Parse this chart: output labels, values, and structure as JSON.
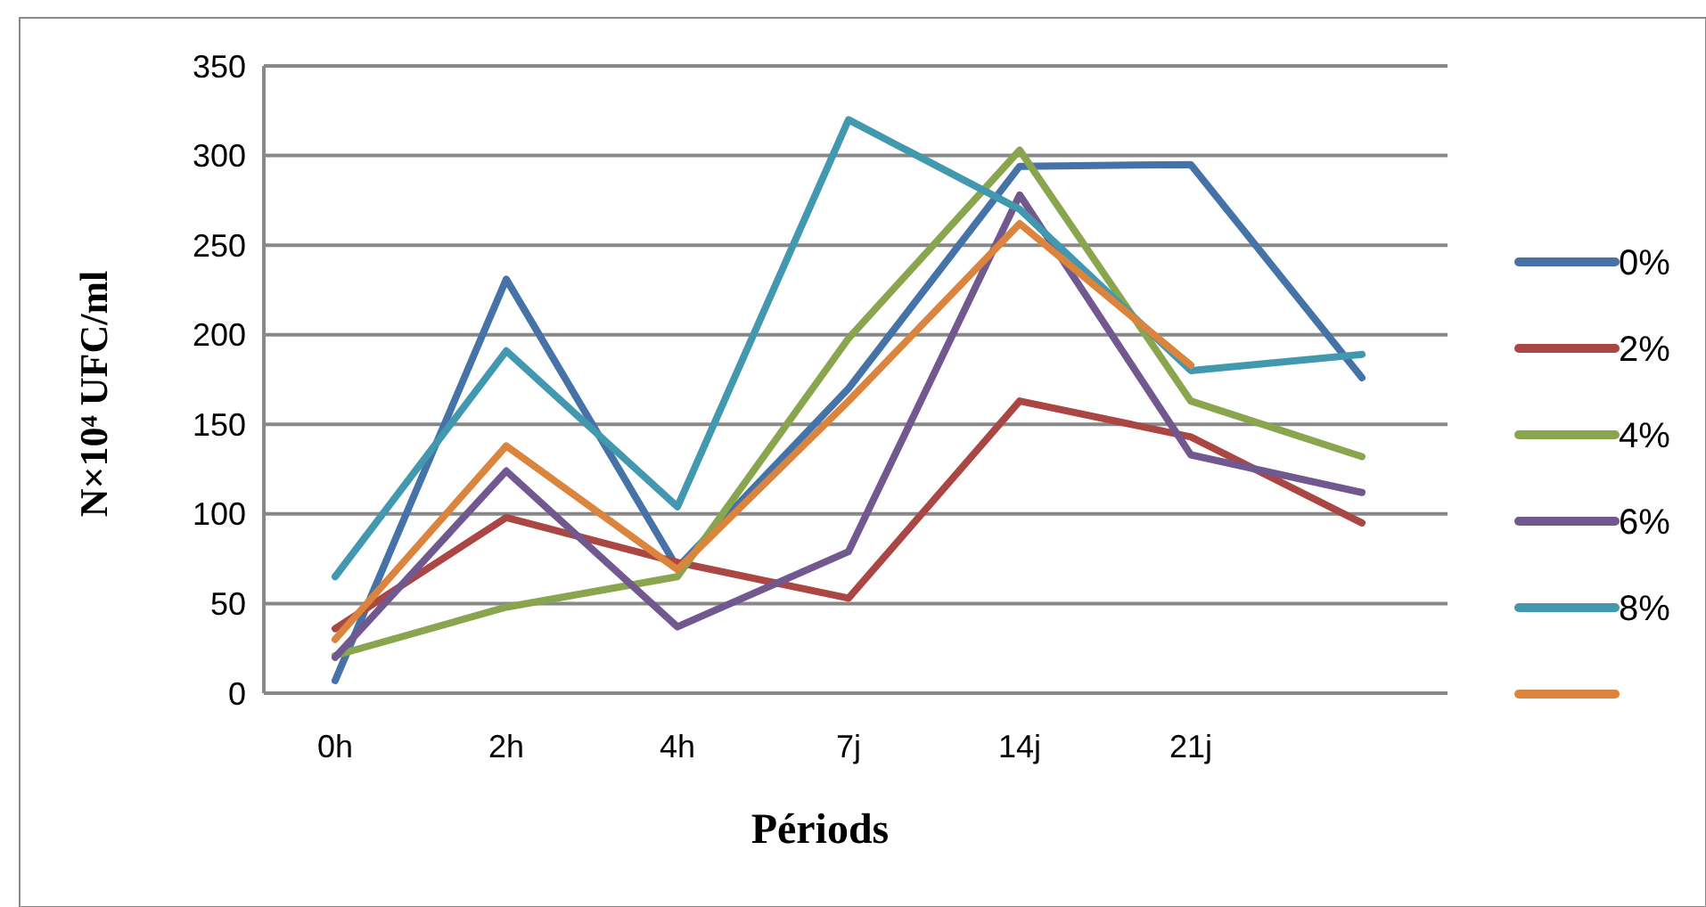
{
  "chart_data": {
    "type": "line",
    "xlabel": "Périods",
    "ylabel": "N×10⁴  UFC/ml",
    "categories": [
      "0h",
      "2h",
      "4h",
      "7j",
      "14j",
      "21j",
      null
    ],
    "ylim": [
      0,
      350
    ],
    "yticks": [
      0,
      50,
      100,
      150,
      200,
      250,
      300,
      350
    ],
    "grid": "y",
    "legend": "right",
    "marker": "none",
    "line_style": "solid",
    "series": [
      {
        "name": "0%",
        "color": "#4572a7",
        "values": [
          7,
          231,
          70,
          170,
          294,
          295,
          176
        ]
      },
      {
        "name": "2%",
        "color": "#aa4643",
        "values": [
          36,
          98,
          73,
          53,
          163,
          143,
          95
        ]
      },
      {
        "name": "4%",
        "color": "#89a54e",
        "values": [
          21,
          48,
          65,
          198,
          303,
          163,
          132
        ]
      },
      {
        "name": "6%",
        "color": "#71588f",
        "values": [
          20,
          124,
          37,
          79,
          278,
          133,
          112
        ]
      },
      {
        "name": "8%",
        "color": "#4198af",
        "values": [
          65,
          191,
          104,
          320,
          270,
          180,
          189
        ]
      },
      {
        "color": "#db843d",
        "values": [
          30,
          138,
          69,
          163,
          262,
          183,
          null
        ]
      }
    ]
  }
}
